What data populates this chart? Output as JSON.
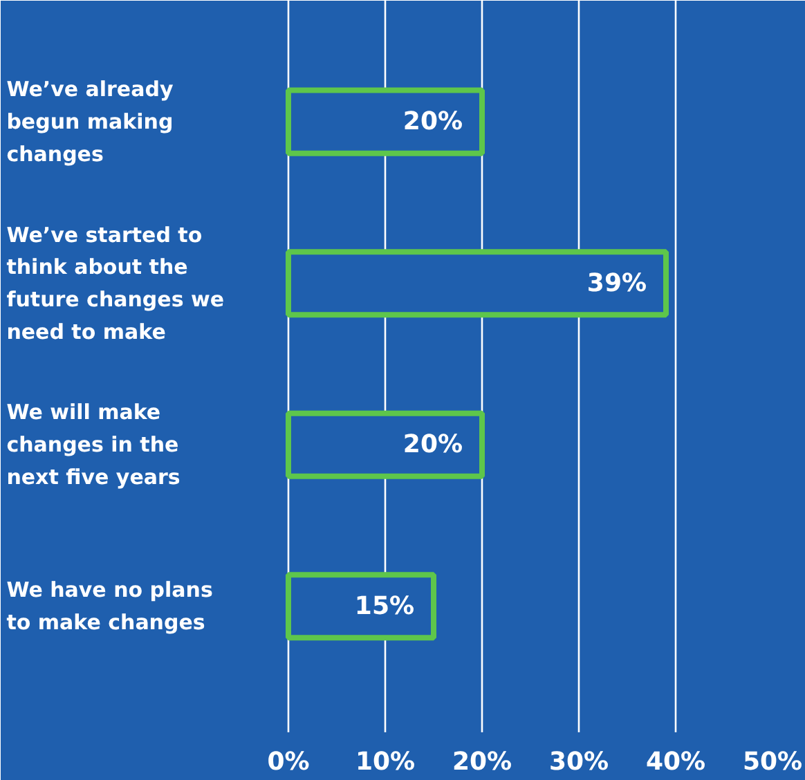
{
  "chart_data": {
    "type": "bar",
    "orientation": "horizontal",
    "categories": [
      "We’ve already begun making changes",
      "We’ve started to think about the future changes we need to make",
      "We will make changes in the next five years",
      "We have no plans to make changes"
    ],
    "values": [
      20,
      39,
      20,
      15
    ],
    "value_labels": [
      "20%",
      "39%",
      "20%",
      "15%"
    ],
    "color": "#5ec64b",
    "xlim": [
      0,
      50
    ],
    "xticks": [
      {
        "value": 0,
        "label": "0%"
      },
      {
        "value": 10,
        "label": "10%"
      },
      {
        "value": 20,
        "label": "20%"
      },
      {
        "value": 30,
        "label": "30%"
      },
      {
        "value": 40,
        "label": "40%"
      },
      {
        "value": 50,
        "label": "50%"
      }
    ],
    "grid": "x"
  }
}
